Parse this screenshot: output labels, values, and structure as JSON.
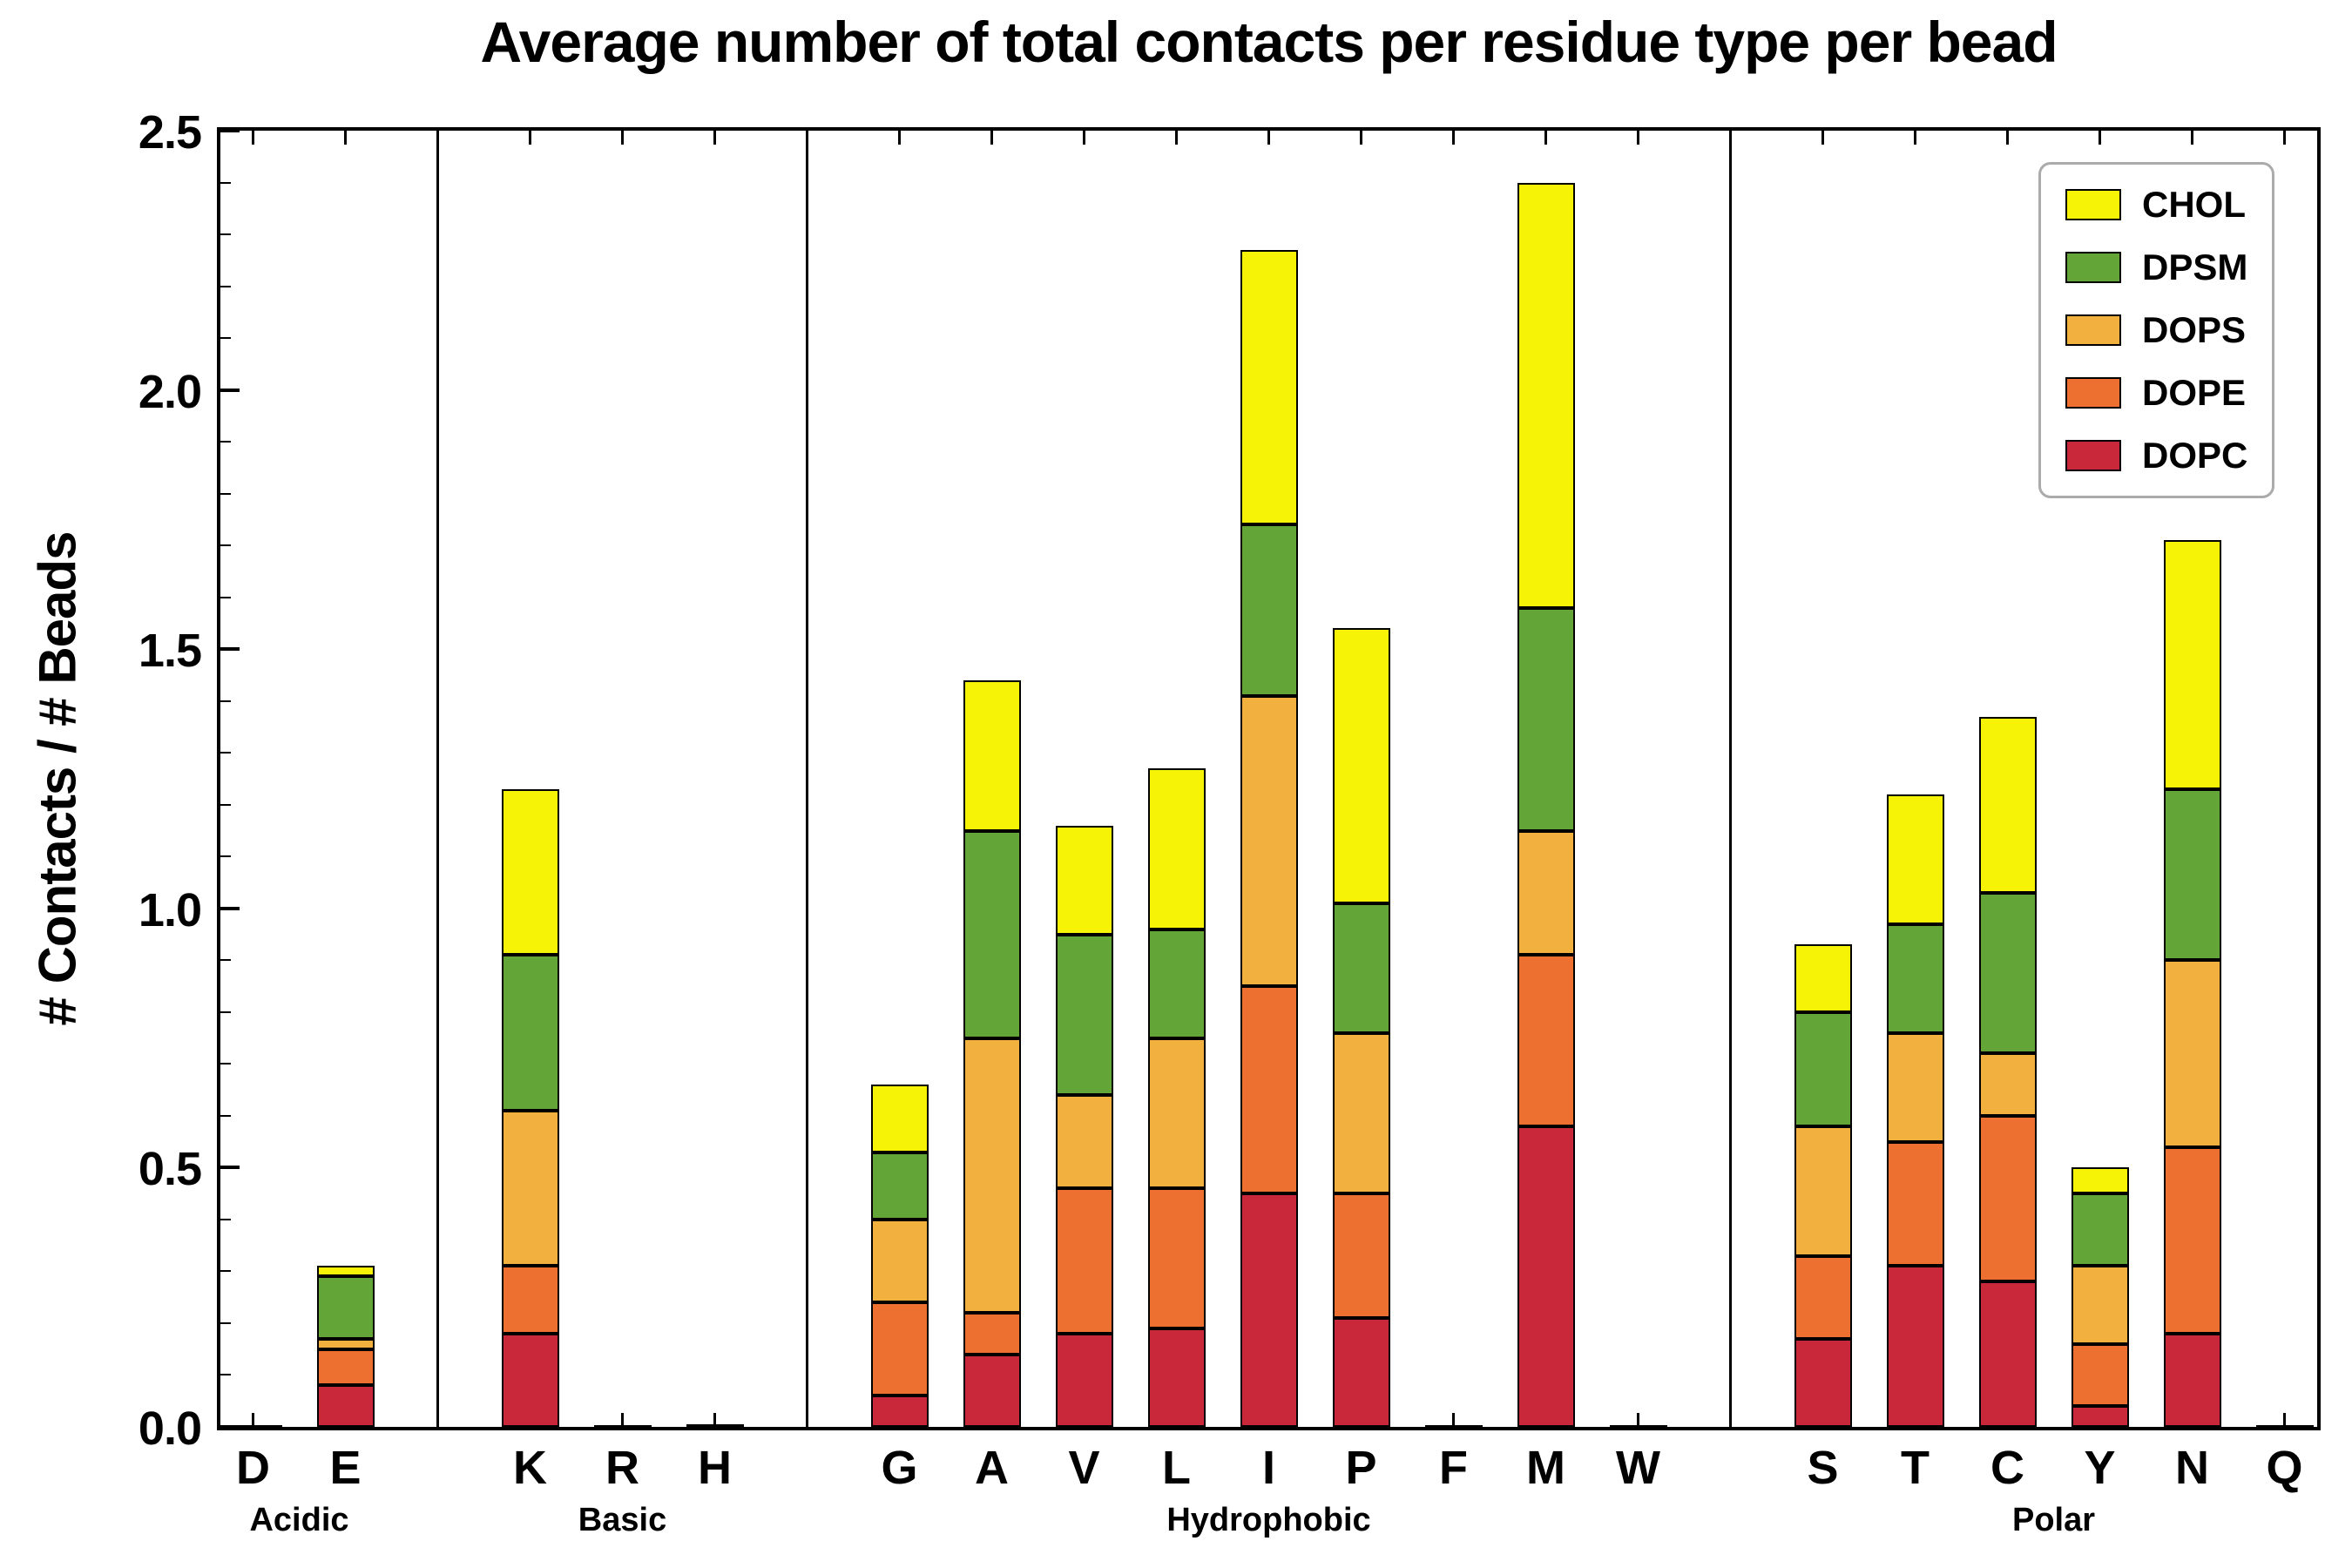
{
  "chart_data": {
    "type": "stacked_bar",
    "title": "Average number of total contacts per residue type per bead",
    "ylabel": "# Contacts / # Beads",
    "ylim": [
      0,
      2.5
    ],
    "yticks": [
      0.0,
      0.5,
      1.0,
      1.5,
      2.0,
      2.5
    ],
    "y_minor_step": 0.1,
    "grid": false,
    "legend_position": "upper right",
    "legend_order": [
      "CHOL",
      "DPSM",
      "DOPS",
      "DOPE",
      "DOPC"
    ],
    "groups": [
      {
        "label": "Acidic",
        "categories": [
          "D",
          "E"
        ]
      },
      {
        "label": "Basic",
        "categories": [
          "K",
          "R",
          "H"
        ]
      },
      {
        "label": "Hydrophobic",
        "categories": [
          "G",
          "A",
          "V",
          "L",
          "I",
          "P",
          "F",
          "M",
          "W"
        ]
      },
      {
        "label": "Polar",
        "categories": [
          "S",
          "T",
          "C",
          "Y",
          "N",
          "Q"
        ]
      }
    ],
    "categories_flat": [
      "D",
      "E",
      "K",
      "R",
      "H",
      "G",
      "A",
      "V",
      "L",
      "I",
      "P",
      "F",
      "M",
      "W",
      "S",
      "T",
      "C",
      "Y",
      "N",
      "Q"
    ],
    "series": [
      {
        "name": "DOPC",
        "color": "#c9283a",
        "values": [
          0.002,
          0.08,
          0.18,
          0.002,
          0.003,
          0.06,
          0.14,
          0.18,
          0.19,
          0.45,
          0.21,
          0.002,
          0.58,
          0.002,
          0.17,
          0.31,
          0.28,
          0.04,
          0.18,
          0.002
        ]
      },
      {
        "name": "DOPE",
        "color": "#ed7030",
        "values": [
          0.001,
          0.07,
          0.13,
          0.001,
          0.001,
          0.18,
          0.08,
          0.28,
          0.27,
          0.4,
          0.24,
          0.001,
          0.33,
          0.001,
          0.16,
          0.24,
          0.32,
          0.12,
          0.36,
          0.001
        ]
      },
      {
        "name": "DOPS",
        "color": "#f2b13f",
        "values": [
          0.001,
          0.02,
          0.3,
          0.001,
          0.001,
          0.16,
          0.53,
          0.18,
          0.29,
          0.56,
          0.31,
          0.001,
          0.24,
          0.001,
          0.25,
          0.21,
          0.12,
          0.15,
          0.36,
          0.001
        ]
      },
      {
        "name": "DPSM",
        "color": "#63a537",
        "values": [
          0,
          0.12,
          0.3,
          0,
          0,
          0.13,
          0.4,
          0.31,
          0.21,
          0.33,
          0.25,
          0,
          0.43,
          0,
          0.22,
          0.21,
          0.31,
          0.14,
          0.33,
          0
        ]
      },
      {
        "name": "CHOL",
        "color": "#f7f307",
        "values": [
          0,
          0.02,
          0.32,
          0,
          0,
          0.13,
          0.29,
          0.21,
          0.31,
          0.53,
          0.53,
          0,
          0.82,
          0,
          0.13,
          0.25,
          0.34,
          0.05,
          0.48,
          0
        ]
      }
    ],
    "totals": [
      0.004,
      0.31,
      1.23,
      0.004,
      0.005,
      0.66,
      1.44,
      1.16,
      1.27,
      2.27,
      1.54,
      0.004,
      2.4,
      0.004,
      0.93,
      1.22,
      1.37,
      0.5,
      1.71,
      0.004
    ]
  }
}
